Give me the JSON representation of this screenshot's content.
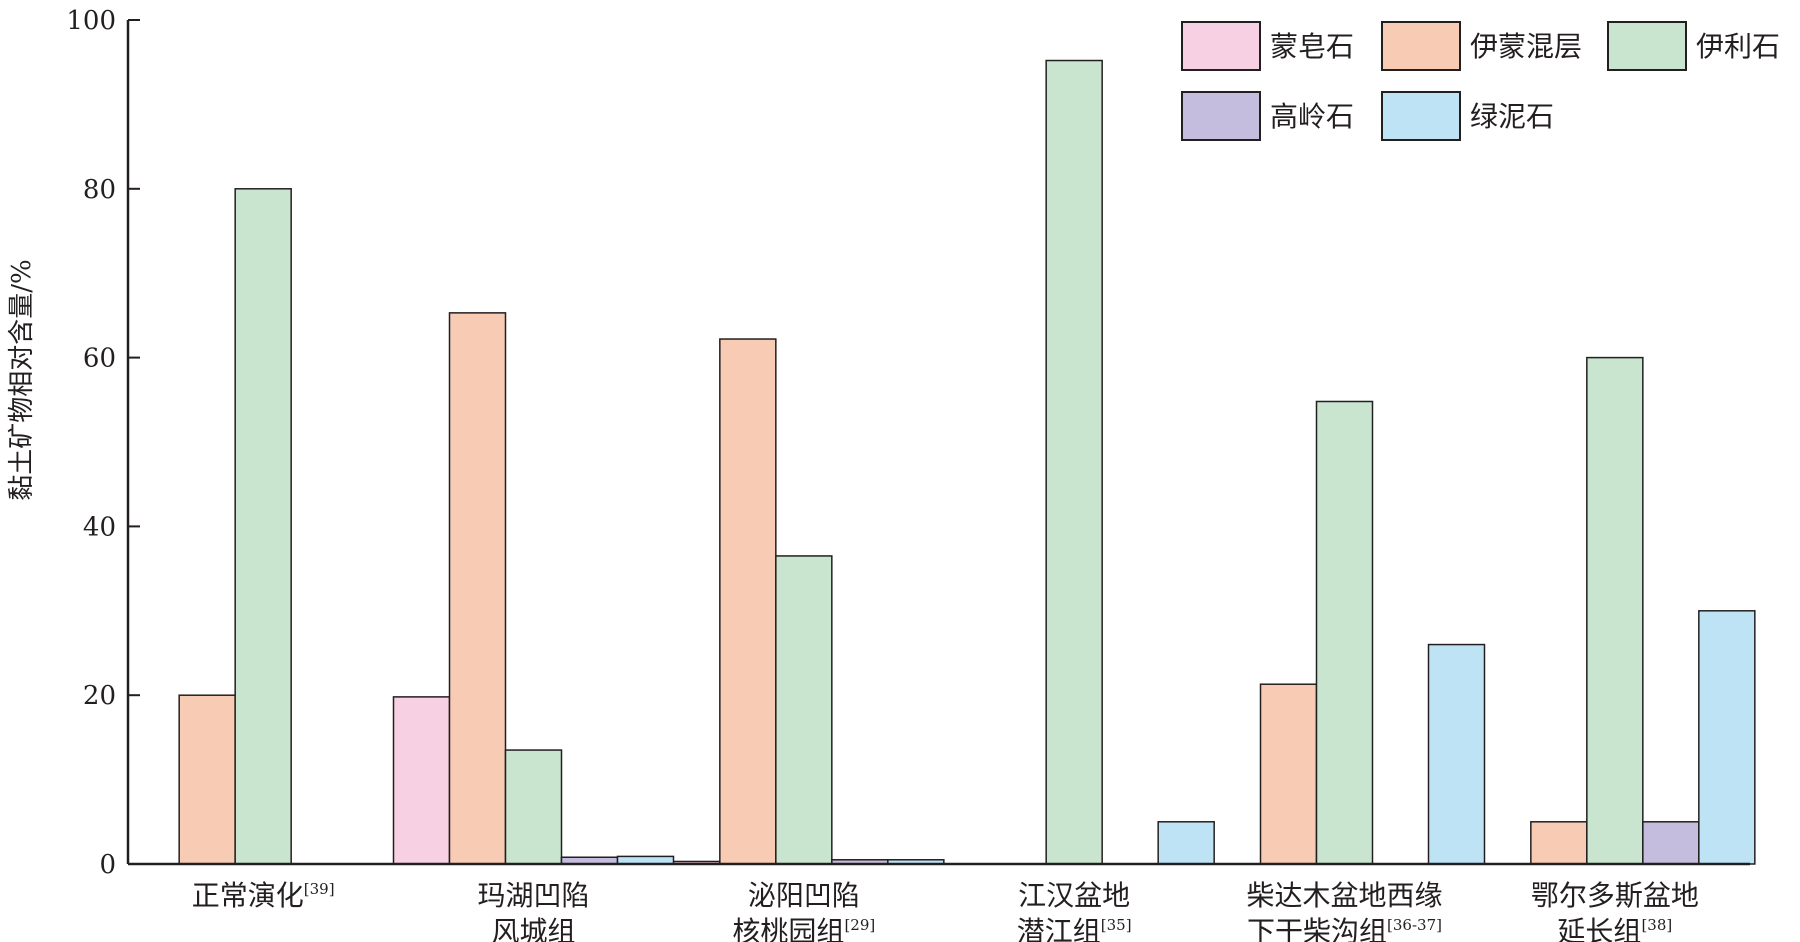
{
  "chart_data": {
    "type": "bar",
    "title": "",
    "xlabel": "",
    "ylabel": "黏土矿物相对含量/%",
    "ylim": [
      0,
      100
    ],
    "yticks": [
      0,
      20,
      40,
      60,
      80,
      100
    ],
    "grid": false,
    "legend_position": "top-right",
    "categories": [
      {
        "lines": [
          "正常演化"
        ],
        "ref": "[39]"
      },
      {
        "lines": [
          "玛湖凹陷",
          "风城组"
        ],
        "ref": ""
      },
      {
        "lines": [
          "泌阳凹陷",
          "核桃园组"
        ],
        "ref": "[29]"
      },
      {
        "lines": [
          "江汉盆地",
          "潜江组"
        ],
        "ref": "[35]"
      },
      {
        "lines": [
          "柴达木盆地西缘",
          "下干柴沟组"
        ],
        "ref": "[36-37]"
      },
      {
        "lines": [
          "鄂尔多斯盆地",
          "延长组"
        ],
        "ref": "[38]"
      }
    ],
    "series": [
      {
        "name": "蒙皂石",
        "color": "#f7d0e3",
        "values": [
          0,
          19.8,
          0.3,
          0,
          0,
          0
        ]
      },
      {
        "name": "伊蒙混层",
        "color": "#f8ccb4",
        "values": [
          20,
          65.3,
          62.2,
          0,
          21.3,
          5
        ]
      },
      {
        "name": "伊利石",
        "color": "#c9e5cf",
        "values": [
          80,
          13.5,
          36.5,
          95.2,
          54.8,
          60
        ]
      },
      {
        "name": "高岭石",
        "color": "#c5bddd",
        "values": [
          0,
          0.8,
          0.5,
          0,
          0,
          5
        ]
      },
      {
        "name": "绿泥石",
        "color": "#bde3f5",
        "values": [
          0,
          0.9,
          0.5,
          5,
          26,
          30
        ]
      }
    ]
  }
}
